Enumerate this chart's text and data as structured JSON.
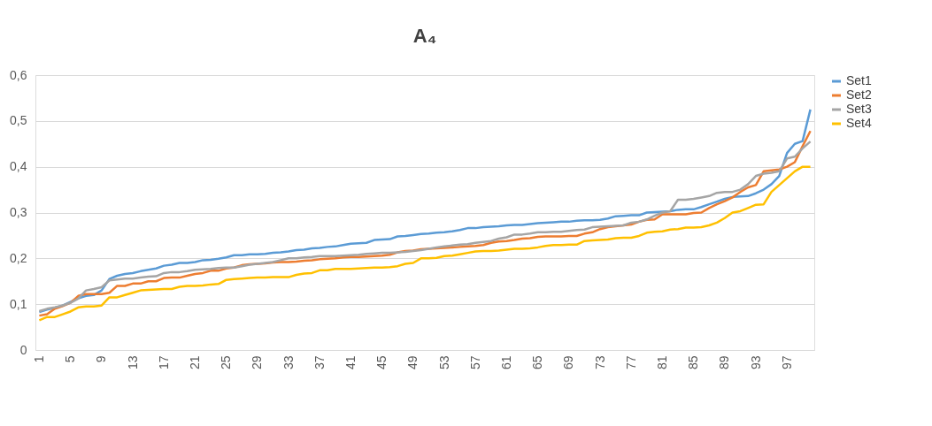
{
  "chart_data": {
    "type": "line",
    "title": "A₄",
    "categories": [
      "1",
      null,
      null,
      null,
      "5",
      null,
      null,
      null,
      "9",
      null,
      null,
      null,
      "13",
      null,
      null,
      null,
      "17",
      null,
      null,
      null,
      "21",
      null,
      null,
      null,
      "25",
      null,
      null,
      null,
      "29",
      null,
      null,
      null,
      "33",
      null,
      null,
      null,
      "37",
      null,
      null,
      null,
      "41",
      null,
      null,
      null,
      "45",
      null,
      null,
      null,
      "49",
      null,
      null,
      null,
      "53",
      null,
      null,
      null,
      "57",
      null,
      null,
      null,
      "61",
      null,
      null,
      null,
      "65",
      null,
      null,
      null,
      "69",
      null,
      null,
      null,
      "73",
      null,
      null,
      null,
      "77",
      null,
      null,
      null,
      "81",
      null,
      null,
      null,
      "85",
      null,
      null,
      null,
      "89",
      null,
      null,
      null,
      "93",
      null,
      null,
      null,
      "97",
      null,
      null,
      null
    ],
    "ylim": [
      0,
      0.6
    ],
    "yticks": [
      0,
      {
        "value": 0.1,
        "label": "0,1"
      },
      {
        "value": 0.2,
        "label": "0,2"
      },
      {
        "value": 0.3,
        "label": "0,3"
      },
      {
        "value": 0.4,
        "label": "0,4"
      },
      {
        "value": 0.5,
        "label": "0,5"
      },
      {
        "value": 0.6,
        "label": "0,6"
      }
    ],
    "grid": "y",
    "legend": "right",
    "marker": "none",
    "line_style": "solid",
    "series": [
      {
        "name": "Set1",
        "color": "#5b9bd5",
        "values": [
          0.083,
          0.088,
          0.092,
          0.097,
          0.105,
          0.113,
          0.118,
          0.12,
          0.13,
          0.155,
          0.162,
          0.166,
          0.168,
          0.172,
          0.175,
          0.178,
          0.184,
          0.186,
          0.19,
          0.19,
          0.192,
          0.196,
          0.197,
          0.199,
          0.202,
          0.207,
          0.207,
          0.209,
          0.209,
          0.21,
          0.212,
          0.213,
          0.215,
          0.218,
          0.219,
          0.222,
          0.223,
          0.225,
          0.226,
          0.229,
          0.232,
          0.233,
          0.234,
          0.24,
          0.241,
          0.242,
          0.248,
          0.249,
          0.251,
          0.253,
          0.254,
          0.256,
          0.257,
          0.259,
          0.262,
          0.266,
          0.266,
          0.268,
          0.269,
          0.27,
          0.272,
          0.273,
          0.273,
          0.275,
          0.277,
          0.278,
          0.279,
          0.28,
          0.28,
          0.282,
          0.283,
          0.283,
          0.284,
          0.287,
          0.292,
          0.293,
          0.294,
          0.294,
          0.3,
          0.301,
          0.302,
          0.303,
          0.306,
          0.307,
          0.307,
          0.312,
          0.318,
          0.324,
          0.33,
          0.334,
          0.335,
          0.336,
          0.342,
          0.35,
          0.362,
          0.38,
          0.43,
          0.45,
          0.456,
          0.525
        ]
      },
      {
        "name": "Set2",
        "color": "#ed7d31",
        "values": [
          0.075,
          0.078,
          0.09,
          0.096,
          0.103,
          0.118,
          0.122,
          0.122,
          0.122,
          0.125,
          0.14,
          0.14,
          0.145,
          0.145,
          0.15,
          0.15,
          0.157,
          0.158,
          0.158,
          0.162,
          0.166,
          0.168,
          0.173,
          0.173,
          0.178,
          0.18,
          0.185,
          0.187,
          0.188,
          0.189,
          0.191,
          0.192,
          0.192,
          0.193,
          0.195,
          0.196,
          0.198,
          0.199,
          0.2,
          0.202,
          0.203,
          0.203,
          0.204,
          0.205,
          0.206,
          0.208,
          0.213,
          0.216,
          0.217,
          0.22,
          0.221,
          0.222,
          0.223,
          0.224,
          0.225,
          0.226,
          0.227,
          0.229,
          0.234,
          0.237,
          0.238,
          0.24,
          0.243,
          0.244,
          0.247,
          0.248,
          0.248,
          0.248,
          0.249,
          0.249,
          0.254,
          0.257,
          0.264,
          0.268,
          0.27,
          0.272,
          0.274,
          0.28,
          0.284,
          0.285,
          0.296,
          0.296,
          0.296,
          0.296,
          0.299,
          0.3,
          0.31,
          0.318,
          0.325,
          0.333,
          0.345,
          0.355,
          0.36,
          0.39,
          0.392,
          0.394,
          0.4,
          0.41,
          0.445,
          0.478
        ]
      },
      {
        "name": "Set3",
        "color": "#a5a5a5",
        "values": [
          0.085,
          0.09,
          0.093,
          0.097,
          0.103,
          0.112,
          0.13,
          0.133,
          0.137,
          0.152,
          0.154,
          0.156,
          0.156,
          0.158,
          0.16,
          0.161,
          0.168,
          0.17,
          0.17,
          0.172,
          0.175,
          0.176,
          0.177,
          0.179,
          0.18,
          0.18,
          0.183,
          0.186,
          0.188,
          0.19,
          0.192,
          0.196,
          0.2,
          0.2,
          0.202,
          0.203,
          0.205,
          0.205,
          0.205,
          0.206,
          0.207,
          0.208,
          0.21,
          0.211,
          0.212,
          0.212,
          0.213,
          0.214,
          0.216,
          0.218,
          0.221,
          0.224,
          0.226,
          0.228,
          0.23,
          0.231,
          0.234,
          0.236,
          0.238,
          0.243,
          0.246,
          0.252,
          0.252,
          0.254,
          0.257,
          0.257,
          0.258,
          0.258,
          0.26,
          0.262,
          0.263,
          0.268,
          0.269,
          0.27,
          0.271,
          0.272,
          0.278,
          0.28,
          0.285,
          0.293,
          0.3,
          0.303,
          0.328,
          0.328,
          0.33,
          0.333,
          0.336,
          0.343,
          0.345,
          0.345,
          0.35,
          0.362,
          0.38,
          0.385,
          0.387,
          0.39,
          0.418,
          0.422,
          0.44,
          0.455
        ]
      },
      {
        "name": "Set4",
        "color": "#ffc000",
        "values": [
          0.065,
          0.072,
          0.072,
          0.078,
          0.084,
          0.093,
          0.095,
          0.095,
          0.097,
          0.115,
          0.115,
          0.12,
          0.125,
          0.13,
          0.131,
          0.132,
          0.133,
          0.133,
          0.138,
          0.14,
          0.14,
          0.141,
          0.143,
          0.144,
          0.153,
          0.155,
          0.156,
          0.157,
          0.158,
          0.158,
          0.159,
          0.159,
          0.159,
          0.164,
          0.167,
          0.168,
          0.174,
          0.174,
          0.177,
          0.177,
          0.177,
          0.178,
          0.179,
          0.18,
          0.18,
          0.181,
          0.183,
          0.188,
          0.19,
          0.2,
          0.2,
          0.201,
          0.205,
          0.206,
          0.209,
          0.212,
          0.215,
          0.216,
          0.216,
          0.217,
          0.219,
          0.221,
          0.221,
          0.222,
          0.224,
          0.227,
          0.229,
          0.229,
          0.23,
          0.23,
          0.238,
          0.239,
          0.24,
          0.241,
          0.244,
          0.245,
          0.245,
          0.249,
          0.256,
          0.258,
          0.259,
          0.263,
          0.264,
          0.267,
          0.267,
          0.268,
          0.272,
          0.278,
          0.288,
          0.3,
          0.303,
          0.31,
          0.317,
          0.318,
          0.345,
          0.36,
          0.375,
          0.39,
          0.4,
          0.4
        ]
      }
    ]
  }
}
